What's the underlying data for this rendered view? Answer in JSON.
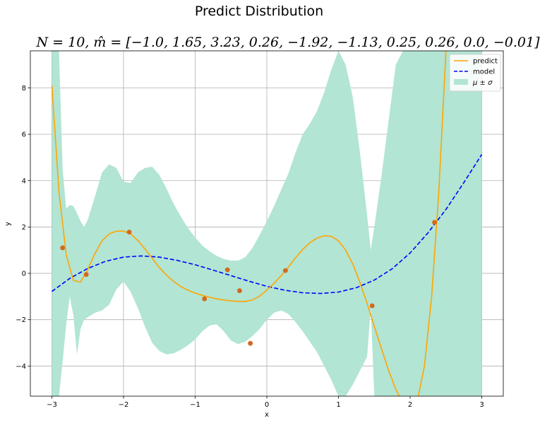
{
  "chart_data": {
    "type": "line",
    "suptitle": "Predict Distribution",
    "title": "N = 10, m̂ = [−1.0, 1.65, 3.23, 0.26, −1.92, −1.13, 0.25, 0.26, 0.0, −0.01]",
    "xlabel": "x",
    "ylabel": "y",
    "xlim": [
      -3.3,
      3.3
    ],
    "ylim": [
      -5.3,
      9.6
    ],
    "xticks": [
      -3,
      -2,
      -1,
      0,
      1,
      2,
      3
    ],
    "yticks": [
      -4,
      -2,
      0,
      2,
      4,
      6,
      8
    ],
    "grid": true,
    "legend_position": "top-right",
    "legend": [
      "predict",
      "model",
      "μ ± σ"
    ],
    "colors": {
      "predict": "#ffa500",
      "model": "#0000ff",
      "band": "#b2e5d3",
      "points": "#d2691e"
    },
    "points": {
      "x": [
        -2.85,
        -2.52,
        -1.92,
        -0.87,
        -0.55,
        -0.38,
        -0.23,
        0.26,
        1.47,
        2.34
      ],
      "y": [
        1.1,
        -0.05,
        1.78,
        -1.1,
        0.15,
        -0.75,
        -3.02,
        0.12,
        -1.4,
        2.2
      ]
    },
    "predict": {
      "x": [
        -3.0,
        -2.9,
        -2.8,
        -2.7,
        -2.6,
        -2.5,
        -2.4,
        -2.3,
        -2.2,
        -2.1,
        -2.0,
        -1.9,
        -1.8,
        -1.7,
        -1.6,
        -1.5,
        -1.4,
        -1.3,
        -1.2,
        -1.1,
        -1.0,
        -0.9,
        -0.8,
        -0.7,
        -0.6,
        -0.5,
        -0.4,
        -0.3,
        -0.2,
        -0.1,
        0.0,
        0.1,
        0.2,
        0.3,
        0.4,
        0.5,
        0.6,
        0.7,
        0.8,
        0.9,
        1.0,
        1.1,
        1.2,
        1.3,
        1.4,
        1.5,
        1.6,
        1.7,
        1.8,
        1.9,
        2.0,
        2.1,
        2.2,
        2.3,
        2.4,
        2.5
      ],
      "y": [
        8.1,
        3.5,
        0.8,
        -0.3,
        -0.38,
        0.15,
        0.85,
        1.4,
        1.7,
        1.82,
        1.82,
        1.7,
        1.42,
        1.05,
        0.65,
        0.25,
        -0.08,
        -0.35,
        -0.57,
        -0.73,
        -0.85,
        -0.95,
        -1.03,
        -1.1,
        -1.15,
        -1.19,
        -1.21,
        -1.21,
        -1.15,
        -0.98,
        -0.72,
        -0.43,
        -0.1,
        0.27,
        0.67,
        1.03,
        1.32,
        1.52,
        1.62,
        1.6,
        1.4,
        1.0,
        0.4,
        -0.4,
        -1.3,
        -2.3,
        -3.25,
        -4.2,
        -5.0,
        -5.6,
        -5.9,
        -5.5,
        -4.0,
        -1.0,
        3.5,
        9.6
      ]
    },
    "model": {
      "x": [
        -3.0,
        -2.75,
        -2.5,
        -2.25,
        -2.0,
        -1.75,
        -1.5,
        -1.25,
        -1.0,
        -0.75,
        -0.5,
        -0.25,
        0.0,
        0.25,
        0.5,
        0.75,
        1.0,
        1.25,
        1.5,
        1.75,
        2.0,
        2.25,
        2.5,
        2.75,
        3.0
      ],
      "y": [
        -0.78,
        -0.22,
        0.21,
        0.52,
        0.7,
        0.75,
        0.7,
        0.56,
        0.37,
        0.14,
        -0.1,
        -0.34,
        -0.56,
        -0.73,
        -0.84,
        -0.87,
        -0.81,
        -0.62,
        -0.29,
        0.2,
        0.88,
        1.75,
        2.76,
        3.92,
        5.13
      ]
    },
    "band": {
      "x": [
        -3.0,
        -2.95,
        -2.9,
        -2.85,
        -2.8,
        -2.75,
        -2.7,
        -2.65,
        -2.6,
        -2.55,
        -2.5,
        -2.4,
        -2.3,
        -2.2,
        -2.1,
        -2.0,
        -1.9,
        -1.8,
        -1.7,
        -1.6,
        -1.5,
        -1.4,
        -1.3,
        -1.2,
        -1.1,
        -1.0,
        -0.9,
        -0.8,
        -0.7,
        -0.6,
        -0.5,
        -0.4,
        -0.3,
        -0.2,
        -0.1,
        0.0,
        0.1,
        0.2,
        0.3,
        0.4,
        0.5,
        0.6,
        0.7,
        0.8,
        0.9,
        1.0,
        1.1,
        1.2,
        1.3,
        1.4,
        1.45,
        1.5,
        1.6,
        1.7,
        1.8,
        1.9,
        2.0,
        2.1,
        2.2,
        2.3,
        2.4,
        2.5,
        2.6,
        2.7,
        2.8,
        2.9,
        3.0
      ],
      "upper": [
        9.6,
        9.6,
        9.6,
        4.5,
        2.8,
        2.95,
        2.9,
        2.6,
        2.25,
        2.0,
        2.3,
        3.3,
        4.35,
        4.7,
        4.55,
        3.95,
        3.9,
        4.35,
        4.55,
        4.6,
        4.25,
        3.65,
        3.0,
        2.45,
        1.95,
        1.55,
        1.2,
        0.95,
        0.75,
        0.62,
        0.55,
        0.55,
        0.7,
        1.1,
        1.65,
        2.25,
        2.9,
        3.6,
        4.3,
        5.2,
        6.0,
        6.45,
        7.0,
        7.8,
        8.8,
        9.6,
        9.0,
        7.6,
        5.2,
        2.5,
        1.0,
        2.0,
        4.2,
        6.6,
        9.0,
        9.6,
        9.6,
        9.6,
        9.6,
        9.6,
        9.6,
        9.6,
        9.6,
        9.6,
        9.6,
        9.6,
        9.6
      ],
      "lower": [
        -5.3,
        -5.3,
        -5.3,
        -3.8,
        -2.2,
        -1.0,
        -1.8,
        -3.5,
        -2.4,
        -2.0,
        -1.9,
        -1.7,
        -1.6,
        -1.35,
        -0.7,
        -0.35,
        -0.8,
        -1.5,
        -2.3,
        -3.0,
        -3.35,
        -3.5,
        -3.45,
        -3.3,
        -3.1,
        -2.85,
        -2.5,
        -2.25,
        -2.2,
        -2.5,
        -2.9,
        -3.05,
        -2.95,
        -2.7,
        -2.4,
        -2.0,
        -1.7,
        -1.6,
        -1.75,
        -2.1,
        -2.5,
        -2.95,
        -3.4,
        -4.0,
        -4.6,
        -5.3,
        -5.3,
        -4.8,
        -4.2,
        -3.6,
        -1.5,
        -5.3,
        -5.3,
        -5.3,
        -5.3,
        -5.3,
        -5.3,
        -5.3,
        -5.3,
        -5.3,
        -5.3,
        -5.3,
        -5.3,
        -5.3,
        -5.3,
        -5.3,
        -5.3
      ]
    }
  }
}
